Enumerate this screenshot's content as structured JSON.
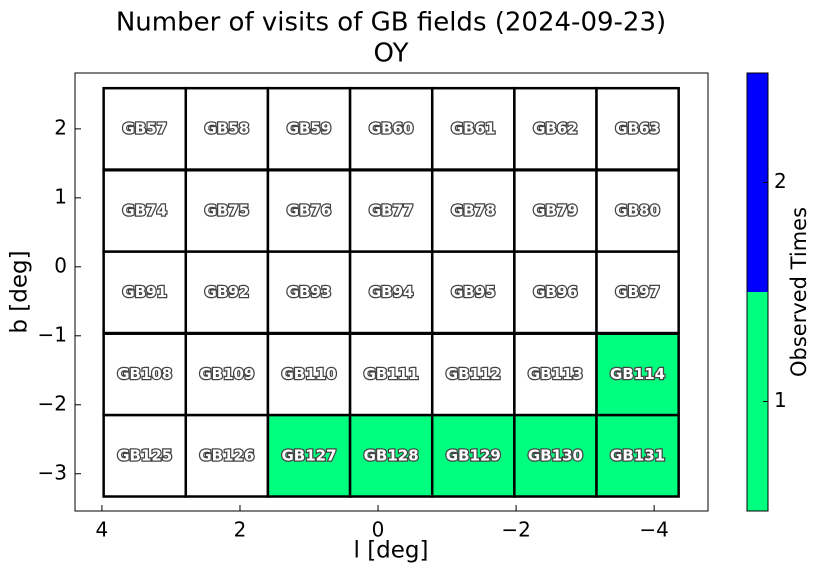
{
  "chart_data": {
    "type": "field-map",
    "title": "Number of visits of GB fields (2024-09-23)",
    "subtitle": "OY",
    "x_label": "l [deg]",
    "y_label": "b [deg]",
    "xlim": [
      4.39,
      -4.78
    ],
    "ylim": [
      -3.54,
      2.81
    ],
    "xticks": [
      4,
      2,
      0,
      {
        "value": -2,
        "label": "−2"
      },
      {
        "value": -4,
        "label": "−4"
      }
    ],
    "yticks": [
      2,
      1,
      0,
      {
        "value": -1,
        "label": "−1"
      },
      {
        "value": -2,
        "label": "−2"
      },
      {
        "value": -3,
        "label": "−3"
      }
    ],
    "field_size": [
      1.19,
      1.18
    ],
    "fields": [
      {
        "name": "GB57",
        "l": 3.38,
        "b": 2.0,
        "visits": null
      },
      {
        "name": "GB58",
        "l": 2.19,
        "b": 2.0,
        "visits": null
      },
      {
        "name": "GB59",
        "l": 1.0,
        "b": 2.0,
        "visits": null
      },
      {
        "name": "GB60",
        "l": -0.19,
        "b": 2.0,
        "visits": null
      },
      {
        "name": "GB61",
        "l": -1.38,
        "b": 2.0,
        "visits": null
      },
      {
        "name": "GB62",
        "l": -2.57,
        "b": 2.0,
        "visits": null
      },
      {
        "name": "GB63",
        "l": -3.76,
        "b": 2.0,
        "visits": null
      },
      {
        "name": "GB74",
        "l": 3.38,
        "b": 0.81,
        "visits": null
      },
      {
        "name": "GB75",
        "l": 2.19,
        "b": 0.81,
        "visits": null
      },
      {
        "name": "GB76",
        "l": 1.0,
        "b": 0.81,
        "visits": null
      },
      {
        "name": "GB77",
        "l": -0.19,
        "b": 0.81,
        "visits": null
      },
      {
        "name": "GB78",
        "l": -1.38,
        "b": 0.81,
        "visits": null
      },
      {
        "name": "GB79",
        "l": -2.57,
        "b": 0.81,
        "visits": null
      },
      {
        "name": "GB80",
        "l": -3.76,
        "b": 0.81,
        "visits": null
      },
      {
        "name": "GB91",
        "l": 3.38,
        "b": -0.37,
        "visits": null
      },
      {
        "name": "GB92",
        "l": 2.19,
        "b": -0.37,
        "visits": null
      },
      {
        "name": "GB93",
        "l": 1.0,
        "b": -0.37,
        "visits": null
      },
      {
        "name": "GB94",
        "l": -0.19,
        "b": -0.37,
        "visits": null
      },
      {
        "name": "GB95",
        "l": -1.38,
        "b": -0.37,
        "visits": null
      },
      {
        "name": "GB96",
        "l": -2.57,
        "b": -0.37,
        "visits": null
      },
      {
        "name": "GB97",
        "l": -3.76,
        "b": -0.37,
        "visits": null
      },
      {
        "name": "GB108",
        "l": 3.38,
        "b": -1.56,
        "visits": null
      },
      {
        "name": "GB109",
        "l": 2.19,
        "b": -1.56,
        "visits": null
      },
      {
        "name": "GB110",
        "l": 1.0,
        "b": -1.56,
        "visits": null
      },
      {
        "name": "GB111",
        "l": -0.19,
        "b": -1.56,
        "visits": null
      },
      {
        "name": "GB112",
        "l": -1.38,
        "b": -1.56,
        "visits": null
      },
      {
        "name": "GB113",
        "l": -2.57,
        "b": -1.56,
        "visits": null
      },
      {
        "name": "GB114",
        "l": -3.76,
        "b": -1.56,
        "visits": 1
      },
      {
        "name": "GB125",
        "l": 3.38,
        "b": -2.74,
        "visits": null
      },
      {
        "name": "GB126",
        "l": 2.19,
        "b": -2.74,
        "visits": null
      },
      {
        "name": "GB127",
        "l": 1.0,
        "b": -2.74,
        "visits": 1
      },
      {
        "name": "GB128",
        "l": -0.19,
        "b": -2.74,
        "visits": 1
      },
      {
        "name": "GB129",
        "l": -1.38,
        "b": -2.74,
        "visits": 1
      },
      {
        "name": "GB130",
        "l": -2.57,
        "b": -2.74,
        "visits": 1
      },
      {
        "name": "GB131",
        "l": -3.76,
        "b": -2.74,
        "visits": 1
      }
    ],
    "colorbar": {
      "label": "Observed Times",
      "lim": [
        0.5,
        2.5
      ],
      "ticks": [
        1,
        2
      ],
      "levels": [
        {
          "value": 1,
          "color": "#00ff7f"
        },
        {
          "value": 2,
          "color": "#0000ff"
        }
      ]
    }
  }
}
